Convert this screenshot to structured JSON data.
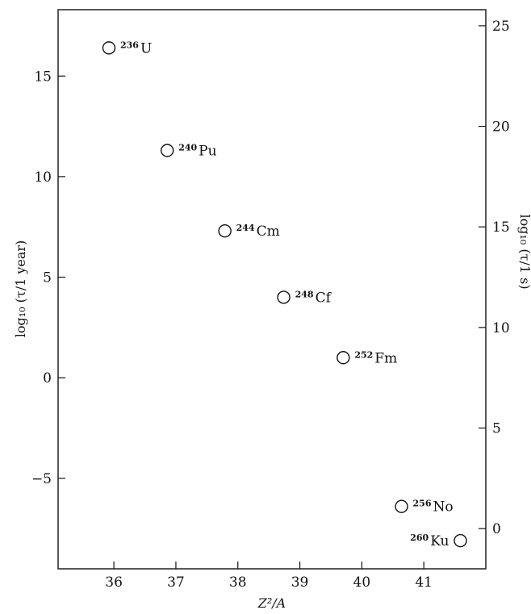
{
  "chart_data": {
    "type": "scatter",
    "title": "",
    "xlabel": "Z²/A",
    "ylabel": "log₁₀ (τ/1 year)",
    "y2label": "log₁₀ (τ/1 s)",
    "xlim": [
      35.1,
      42.0
    ],
    "ylim": [
      -9.5,
      18.3
    ],
    "y2lim": [
      -2.0,
      25.8
    ],
    "x_ticks": [
      36,
      37,
      38,
      39,
      40,
      41
    ],
    "y_ticks": [
      15,
      10,
      5,
      0,
      -5
    ],
    "y2_ticks": [
      25,
      20,
      15,
      10,
      5,
      0
    ],
    "grid": false,
    "marker": "open-circle",
    "points": [
      {
        "mass": "236",
        "element": "U",
        "x": 35.92,
        "y": 16.4
      },
      {
        "mass": "240",
        "element": "Pu",
        "x": 36.86,
        "y": 11.3
      },
      {
        "mass": "244",
        "element": "Cm",
        "x": 37.79,
        "y": 7.3
      },
      {
        "mass": "248",
        "element": "Cf",
        "x": 38.74,
        "y": 4.0
      },
      {
        "mass": "252",
        "element": "Fm",
        "x": 39.7,
        "y": 1.0
      },
      {
        "mass": "256",
        "element": "No",
        "x": 40.64,
        "y": -6.4
      },
      {
        "mass": "260",
        "element": "Ku",
        "x": 41.59,
        "y": -8.1
      }
    ]
  }
}
